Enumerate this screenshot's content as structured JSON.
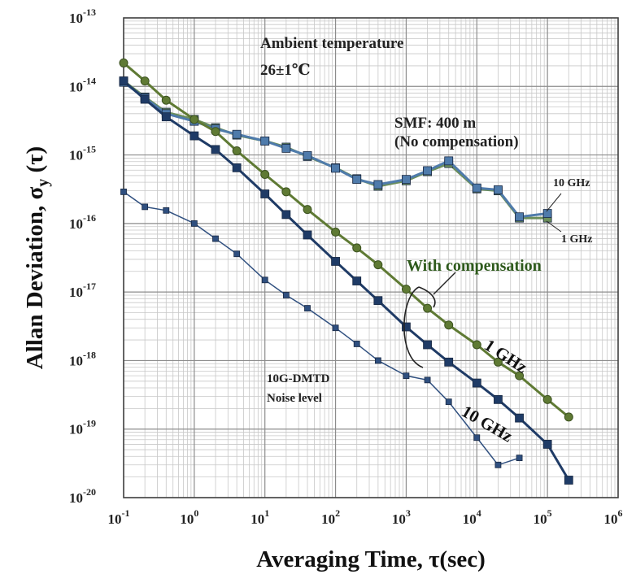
{
  "chart_data": {
    "type": "line",
    "xscale": "log",
    "yscale": "log",
    "xlim": [
      0.1,
      1000000
    ],
    "ylim": [
      1e-20,
      1e-13
    ],
    "grid": true,
    "xlabel": "Averaging Time, τ(sec)",
    "ylabel_parts": [
      "Allan Deviation, σ",
      "y",
      " (τ)"
    ],
    "x_ticks": [
      {
        "mant": "10",
        "exp": "-1"
      },
      {
        "mant": "10",
        "exp": "0"
      },
      {
        "mant": "10",
        "exp": "1"
      },
      {
        "mant": "10",
        "exp": "2"
      },
      {
        "mant": "10",
        "exp": "3"
      },
      {
        "mant": "10",
        "exp": "4"
      },
      {
        "mant": "10",
        "exp": "5"
      },
      {
        "mant": "10",
        "exp": "6"
      }
    ],
    "y_ticks": [
      {
        "mant": "10",
        "exp": "-20"
      },
      {
        "mant": "10",
        "exp": "-19"
      },
      {
        "mant": "10",
        "exp": "-18"
      },
      {
        "mant": "10",
        "exp": "-17"
      },
      {
        "mant": "10",
        "exp": "-16"
      },
      {
        "mant": "10",
        "exp": "-15"
      },
      {
        "mant": "10",
        "exp": "-14"
      },
      {
        "mant": "10",
        "exp": "-13"
      }
    ],
    "series": [
      {
        "key": "nocomp-1ghz",
        "color": "#6b8e5a",
        "marker": "square",
        "x": [
          0.1,
          0.2,
          0.4,
          1,
          2,
          4,
          10,
          20,
          40,
          100,
          200,
          400,
          1000,
          2000,
          4000,
          10000,
          20000,
          40000,
          100000
        ],
        "y": [
          1.2e-14,
          7e-15,
          4.2e-15,
          3.3e-15,
          2.5e-15,
          1.95e-15,
          1.6e-15,
          1.3e-15,
          9.5e-16,
          6.5e-16,
          4.5e-16,
          3.5e-16,
          4.2e-16,
          5.7e-16,
          7.5e-16,
          3.2e-16,
          3e-16,
          1.2e-16,
          1.2e-16
        ]
      },
      {
        "key": "nocomp-10ghz",
        "color": "#4f7bab",
        "marker": "square",
        "x": [
          0.1,
          0.2,
          0.4,
          1,
          2,
          4,
          10,
          20,
          40,
          100,
          200,
          400,
          1000,
          2000,
          4000,
          10000,
          20000,
          40000,
          100000
        ],
        "y": [
          1.15e-14,
          6.8e-15,
          4e-15,
          3.1e-15,
          2.4e-15,
          2e-15,
          1.6e-15,
          1.25e-15,
          9.8e-16,
          6.4e-16,
          4.4e-16,
          3.7e-16,
          4.4e-16,
          5.9e-16,
          8.2e-16,
          3.3e-16,
          3.1e-16,
          1.25e-16,
          1.4e-16
        ]
      },
      {
        "key": "comp-1ghz",
        "color": "#5f7a34",
        "marker": "circle",
        "x": [
          0.1,
          0.2,
          0.4,
          1,
          2,
          4,
          10,
          20,
          40,
          100,
          200,
          400,
          1000,
          2000,
          4000,
          10000,
          20000,
          40000,
          100000,
          200000
        ],
        "y": [
          2.2e-14,
          1.2e-14,
          6.3e-15,
          3.3e-15,
          2.2e-15,
          1.15e-15,
          5.2e-16,
          2.9e-16,
          1.6e-16,
          7.5e-17,
          4.4e-17,
          2.5e-17,
          1.1e-17,
          5.8e-18,
          3.3e-18,
          1.7e-18,
          9.5e-19,
          6e-19,
          2.7e-19,
          1.5e-19
        ]
      },
      {
        "key": "comp-10ghz",
        "color": "#1f3b66",
        "marker": "square",
        "x": [
          0.1,
          0.2,
          0.4,
          1,
          2,
          4,
          10,
          20,
          40,
          100,
          200,
          400,
          1000,
          2000,
          4000,
          10000,
          20000,
          40000,
          100000,
          200000
        ],
        "y": [
          1.2e-14,
          6.5e-15,
          3.6e-15,
          1.9e-15,
          1.2e-15,
          6.5e-16,
          2.7e-16,
          1.35e-16,
          6.8e-17,
          2.8e-17,
          1.45e-17,
          7.5e-18,
          3.1e-18,
          1.7e-18,
          9.5e-19,
          4.7e-19,
          2.7e-19,
          1.45e-19,
          6e-20,
          1.8e-20
        ]
      },
      {
        "key": "noise-floor",
        "color": "#2f4f7f",
        "marker": "square-small",
        "x": [
          0.1,
          0.2,
          0.4,
          1,
          2,
          4,
          10,
          20,
          40,
          100,
          200,
          400,
          1000,
          2000,
          4000,
          10000,
          20000,
          40000
        ],
        "y": [
          2.9e-16,
          1.75e-16,
          1.55e-16,
          1e-16,
          6e-17,
          3.6e-17,
          1.5e-17,
          9e-18,
          5.8e-18,
          3e-18,
          1.75e-18,
          1e-18,
          6e-19,
          5.2e-19,
          2.5e-19,
          7.5e-20,
          3e-20,
          3.8e-20
        ]
      }
    ],
    "annotations": {
      "ambient_line1": "Ambient temperature",
      "ambient_line2": "26±1℃",
      "smf_line1": "SMF: 400 m",
      "smf_line2": "(No compensation)",
      "nocomp_10ghz": "10 GHz",
      "nocomp_1ghz": "1 GHz",
      "with_compensation": "With compensation",
      "comp_1ghz": "1 GHz",
      "comp_10ghz": "10 GHz",
      "noise_line1": "10G-DMTD",
      "noise_line2": "Noise level"
    }
  }
}
